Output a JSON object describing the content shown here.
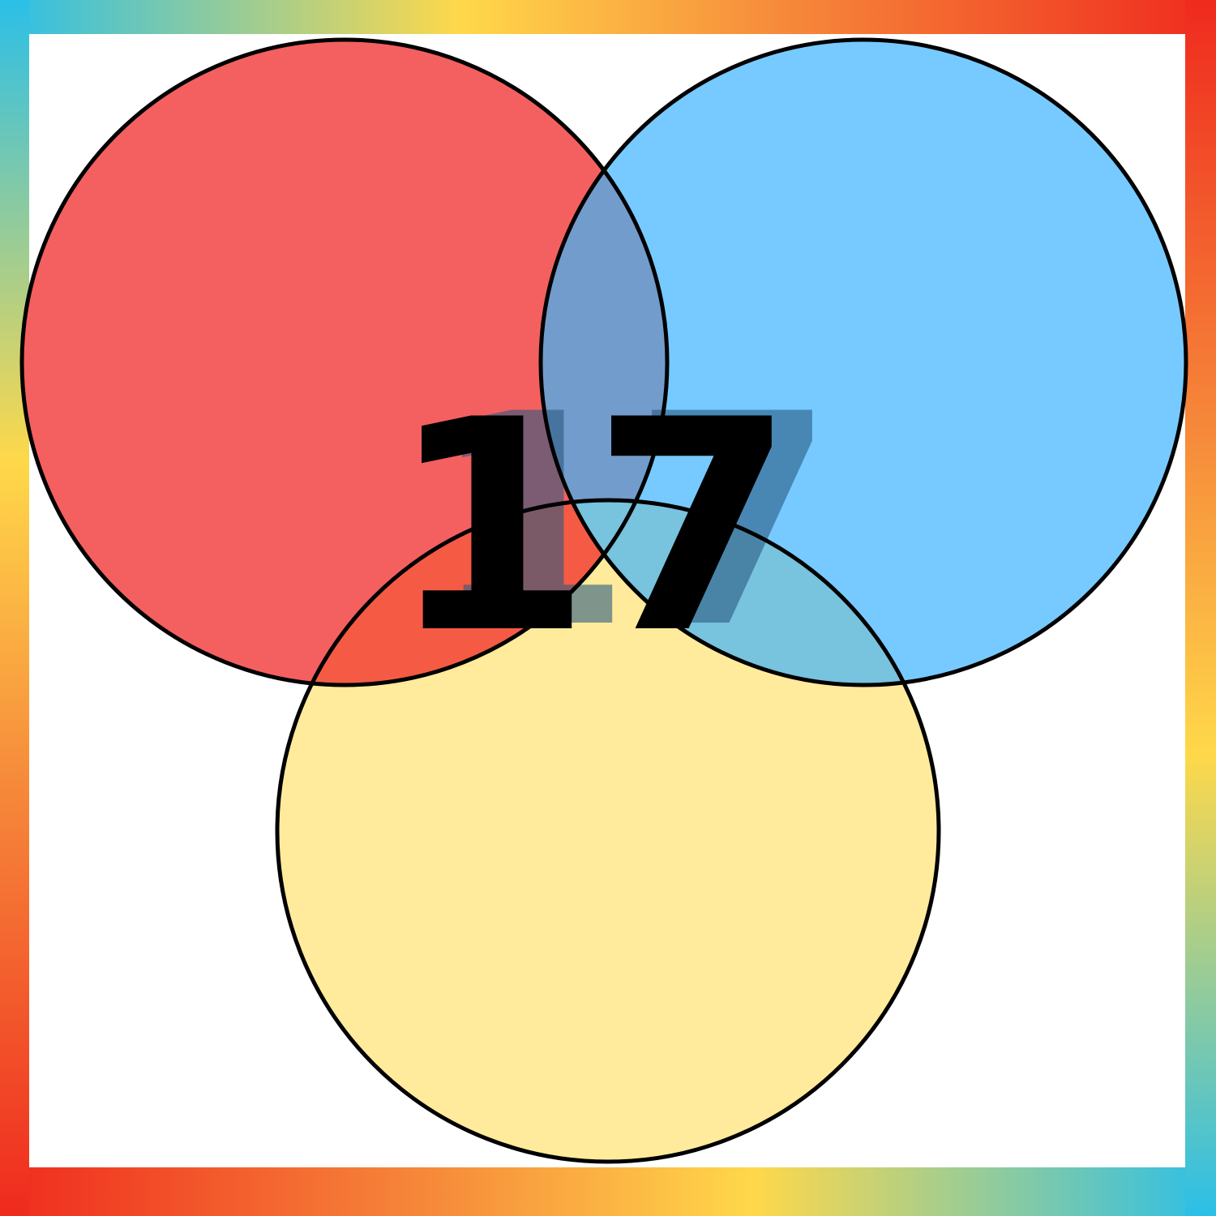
{
  "number_label": "17",
  "colors": {
    "red_circle": "#f46060",
    "blue_circle": "#77caff",
    "yellow_circle": "#ffeb9b",
    "red_blue_overlap": "#729ccb",
    "red_yellow_overlap": "#f55b44",
    "blue_yellow_overlap": "#78c3de",
    "outline": "#000000",
    "number_fill": "#000000",
    "number_shadow": "#2a5a80",
    "border_gradient": [
      "#2bbfe8",
      "#ffd84a",
      "#f6883a",
      "#ef2a1e"
    ]
  }
}
